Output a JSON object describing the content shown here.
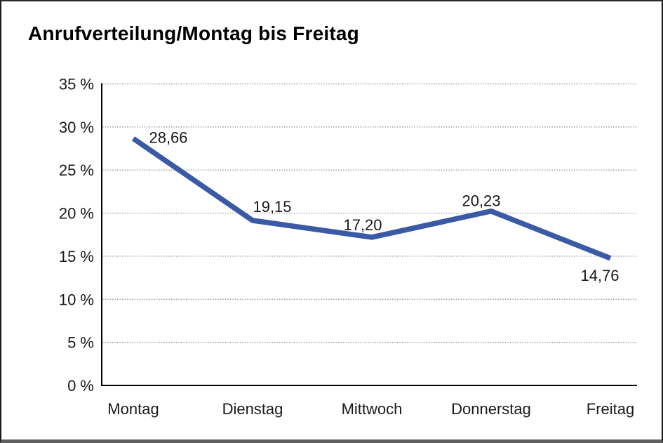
{
  "window": {
    "background": "#ffffff",
    "border_color": "#1a1a1a"
  },
  "chart_data": {
    "type": "line",
    "title": "Anrufverteilung/Montag bis Freitag",
    "categories": [
      "Montag",
      "Dienstag",
      "Mittwoch",
      "Donnerstag",
      "Freitag"
    ],
    "values": [
      28.66,
      19.15,
      17.2,
      20.23,
      14.76
    ],
    "value_labels": [
      "28,66",
      "19,15",
      "17,20",
      "20,23",
      "14,76"
    ],
    "unit": "%",
    "y_ticks": [
      {
        "value": 0,
        "label": "0 %"
      },
      {
        "value": 5,
        "label": "5 %"
      },
      {
        "value": 10,
        "label": "10 %"
      },
      {
        "value": 15,
        "label": "15 %"
      },
      {
        "value": 20,
        "label": "20 %"
      },
      {
        "value": 25,
        "label": "25 %"
      },
      {
        "value": 30,
        "label": "30 %"
      },
      {
        "value": 35,
        "label": "35 %"
      }
    ],
    "ylim": [
      0,
      35
    ],
    "xlabel": "",
    "ylabel": "",
    "legend": "none",
    "grid": "horizontal-dotted",
    "line_color": "#3b5aa5",
    "grid_color": "#7e7e7e",
    "axis_color": "#000000",
    "text_color": "#1a1a1a"
  }
}
